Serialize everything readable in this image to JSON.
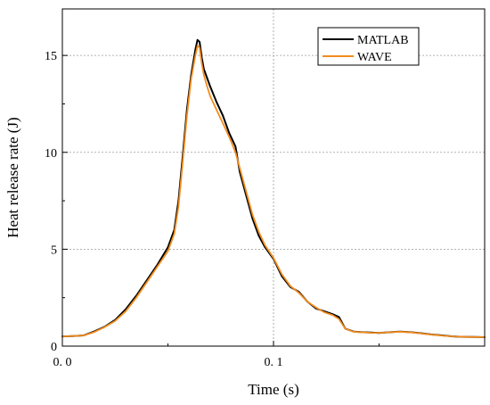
{
  "chart_data": {
    "type": "line",
    "title": "",
    "xlabel": "Time (s)",
    "ylabel": "Heat release rate (J)",
    "xlim": [
      0.0,
      0.2
    ],
    "ylim": [
      0,
      17.4
    ],
    "x_ticks": [
      {
        "value": 0.0,
        "label": "0. 0"
      },
      {
        "value": 0.1,
        "label": "0. 1"
      }
    ],
    "y_ticks": [
      {
        "value": 0,
        "label": "0"
      },
      {
        "value": 5,
        "label": "5"
      },
      {
        "value": 10,
        "label": "10"
      },
      {
        "value": 15,
        "label": "15"
      }
    ],
    "grid": true,
    "legend_position": "top-right",
    "series": [
      {
        "name": "MATLAB",
        "color": "#000000",
        "x": [
          0.0,
          0.005,
          0.01,
          0.015,
          0.02,
          0.025,
          0.03,
          0.035,
          0.04,
          0.045,
          0.05,
          0.053,
          0.055,
          0.057,
          0.059,
          0.061,
          0.063,
          0.064,
          0.065,
          0.066,
          0.067,
          0.068,
          0.07,
          0.073,
          0.076,
          0.079,
          0.082,
          0.084,
          0.087,
          0.09,
          0.093,
          0.096,
          0.1,
          0.104,
          0.108,
          0.112,
          0.116,
          0.12,
          0.124,
          0.128,
          0.131,
          0.134,
          0.138,
          0.142,
          0.146,
          0.15,
          0.155,
          0.16,
          0.165,
          0.17,
          0.175,
          0.18,
          0.185,
          0.19,
          0.195,
          0.2
        ],
        "y": [
          0.5,
          0.52,
          0.55,
          0.75,
          1.0,
          1.35,
          1.9,
          2.6,
          3.4,
          4.2,
          5.1,
          6.0,
          7.5,
          9.8,
          12.2,
          14.0,
          15.3,
          15.8,
          15.7,
          14.9,
          14.3,
          14.0,
          13.4,
          12.6,
          11.9,
          11.0,
          10.3,
          9.0,
          7.8,
          6.6,
          5.7,
          5.1,
          4.5,
          3.6,
          3.05,
          2.8,
          2.3,
          1.95,
          1.8,
          1.65,
          1.5,
          0.9,
          0.75,
          0.72,
          0.7,
          0.68,
          0.72,
          0.75,
          0.72,
          0.66,
          0.6,
          0.55,
          0.5,
          0.48,
          0.47,
          0.46
        ]
      },
      {
        "name": "WAVE",
        "color": "#F28C1E",
        "x": [
          0.0,
          0.005,
          0.01,
          0.015,
          0.02,
          0.025,
          0.03,
          0.035,
          0.04,
          0.045,
          0.05,
          0.053,
          0.055,
          0.057,
          0.059,
          0.061,
          0.063,
          0.064,
          0.065,
          0.066,
          0.067,
          0.068,
          0.07,
          0.073,
          0.076,
          0.079,
          0.082,
          0.084,
          0.087,
          0.09,
          0.093,
          0.096,
          0.1,
          0.104,
          0.108,
          0.112,
          0.116,
          0.12,
          0.124,
          0.128,
          0.131,
          0.134,
          0.138,
          0.142,
          0.146,
          0.15,
          0.155,
          0.16,
          0.165,
          0.17,
          0.175,
          0.18,
          0.185,
          0.19,
          0.195,
          0.2
        ],
        "y": [
          0.5,
          0.52,
          0.55,
          0.72,
          0.98,
          1.3,
          1.8,
          2.5,
          3.3,
          4.1,
          4.9,
          5.8,
          7.2,
          9.5,
          11.9,
          13.8,
          15.0,
          15.5,
          15.4,
          14.6,
          14.0,
          13.6,
          12.9,
          12.2,
          11.5,
          10.8,
          10.0,
          9.2,
          8.0,
          6.8,
          5.9,
          5.2,
          4.55,
          3.7,
          3.1,
          2.75,
          2.3,
          2.0,
          1.75,
          1.6,
          1.4,
          0.9,
          0.74,
          0.71,
          0.69,
          0.68,
          0.72,
          0.74,
          0.71,
          0.65,
          0.59,
          0.54,
          0.5,
          0.48,
          0.47,
          0.46
        ]
      }
    ]
  }
}
